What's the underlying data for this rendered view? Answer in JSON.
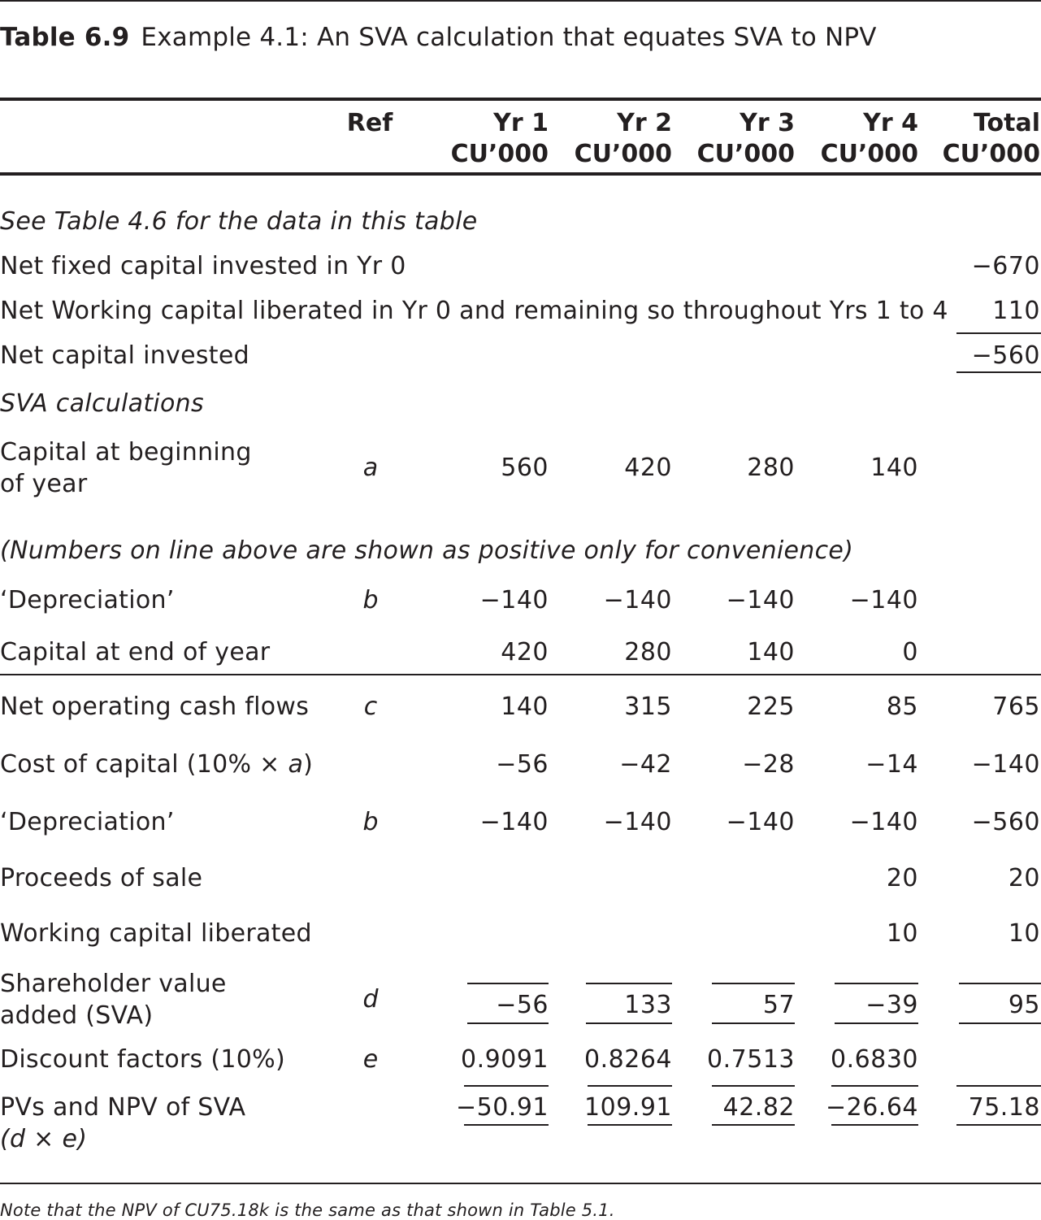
{
  "caption": {
    "label": "Table 6.9",
    "title": "Example 4.1: An SVA calculation that equates SVA to NPV"
  },
  "columns": {
    "ref": "Ref",
    "yr1": [
      "Yr 1",
      "CU’000"
    ],
    "yr2": [
      "Yr 2",
      "CU’000"
    ],
    "yr3": [
      "Yr 3",
      "CU’000"
    ],
    "yr4": [
      "Yr 4",
      "CU’000"
    ],
    "total": [
      "Total",
      "CU’000"
    ]
  },
  "section1_note": "See Table 4.6 for the data in this table",
  "capital_rows": [
    {
      "label": "Net fixed capital invested in Yr 0",
      "total": "−670"
    },
    {
      "label": "Net Working capital liberated in Yr 0 and remaining so throughout Yrs 1 to 4",
      "total": "110"
    },
    {
      "label": "Net capital invested",
      "total": "−560"
    }
  ],
  "section2_heading": "SVA calculations",
  "capital_begin": {
    "label_line1": "Capital at beginning",
    "label_line2": "of year",
    "ref": "a",
    "values": [
      "560",
      "420",
      "280",
      "140"
    ]
  },
  "positive_note": "(Numbers on line above are shown as positive only for convenience)",
  "depreciation_a": {
    "label": "‘Depreciation’",
    "ref": "b",
    "values": [
      "−140",
      "−140",
      "−140",
      "−140"
    ]
  },
  "capital_end": {
    "label": "Capital at end of year",
    "values": [
      "420",
      "280",
      "140",
      "0"
    ]
  },
  "net_operating": {
    "label": "Net operating cash flows",
    "ref": "c",
    "values": [
      "140",
      "315",
      "225",
      "85"
    ],
    "total": "765"
  },
  "cost_of_capital": {
    "label_prefix": "Cost of capital (10% × ",
    "label_var": "a",
    "label_suffix": ")",
    "values": [
      "−56",
      "−42",
      "−28",
      "−14"
    ],
    "total": "−140"
  },
  "depreciation_b": {
    "label": "‘Depreciation’",
    "ref": "b",
    "values": [
      "−140",
      "−140",
      "−140",
      "−140"
    ],
    "total": "−560"
  },
  "proceeds": {
    "label": "Proceeds of sale",
    "yr4": "20",
    "total": "20"
  },
  "wc_liberated": {
    "label": "Working capital liberated",
    "yr4": "10",
    "total": "10"
  },
  "sva": {
    "label_line1": "Shareholder value",
    "label_line2": "added (SVA)",
    "ref": "d",
    "values": [
      "−56",
      "133",
      "57",
      "−39"
    ],
    "total": "95"
  },
  "discount": {
    "label": "Discount factors (10%)",
    "ref": "e",
    "values": [
      "0.9091",
      "0.8264",
      "0.7513",
      "0.6830"
    ]
  },
  "pv": {
    "label_line1": "PVs and NPV of SVA",
    "label_line2": "(d × e)",
    "values": [
      "−50.91",
      "109.91",
      "42.82",
      "−26.64"
    ],
    "total": "75.18"
  },
  "footnote": "Note that the NPV of CU75.18k is the same as that shown in Table 5.1."
}
